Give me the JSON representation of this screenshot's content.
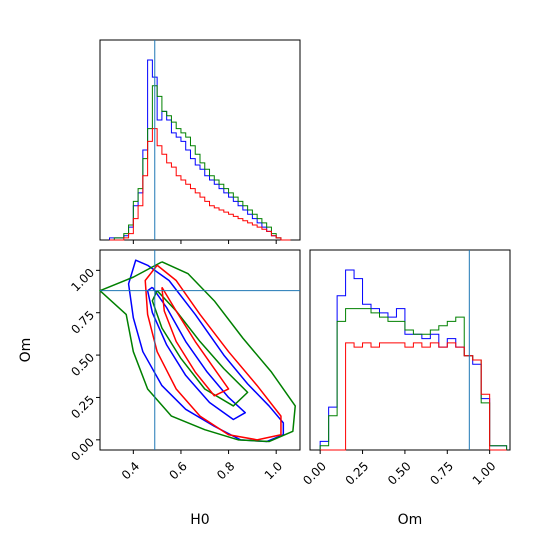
{
  "chart_data": [
    {
      "type": "histogram",
      "panel": "H0 marginal",
      "xlim": [
        0.26,
        1.1
      ],
      "truth": 0.49,
      "bins": [
        0.3,
        0.32,
        0.34,
        0.36,
        0.38,
        0.4,
        0.42,
        0.44,
        0.46,
        0.48,
        0.5,
        0.52,
        0.54,
        0.56,
        0.58,
        0.6,
        0.62,
        0.64,
        0.66,
        0.68,
        0.7,
        0.72,
        0.74,
        0.76,
        0.78,
        0.8,
        0.82,
        0.84,
        0.86,
        0.88,
        0.9,
        0.92,
        0.94,
        0.96,
        0.98,
        1.0,
        1.02,
        1.04,
        1.06
      ],
      "series": [
        {
          "color": "#0000ff",
          "values": [
            1,
            1,
            1,
            2,
            6,
            16,
            22,
            42,
            84,
            76,
            56,
            60,
            56,
            50,
            48,
            46,
            42,
            38,
            35,
            33,
            30,
            28,
            26,
            24,
            22,
            20,
            18,
            16,
            14,
            12,
            10,
            8,
            6,
            4,
            2,
            1,
            0,
            0
          ]
        },
        {
          "color": "#008000",
          "values": [
            0,
            1,
            1,
            3,
            7,
            18,
            24,
            38,
            52,
            72,
            67,
            60,
            58,
            55,
            52,
            50,
            48,
            44,
            40,
            36,
            33,
            30,
            28,
            26,
            24,
            22,
            20,
            18,
            16,
            14,
            12,
            10,
            8,
            6,
            3,
            1,
            0,
            0
          ]
        },
        {
          "color": "#ff0000",
          "values": [
            0,
            0,
            0,
            1,
            3,
            10,
            16,
            30,
            46,
            52,
            44,
            40,
            36,
            34,
            30,
            28,
            26,
            24,
            22,
            20,
            18,
            16,
            15,
            14,
            13,
            12,
            11,
            10,
            9,
            8,
            7,
            6,
            5,
            4,
            2,
            1,
            0,
            0
          ]
        }
      ]
    },
    {
      "type": "contour",
      "panel": "H0 vs Om",
      "xlabel": "H0",
      "ylabel": "Om",
      "xlim": [
        0.26,
        1.1
      ],
      "ylim": [
        -0.06,
        1.12
      ],
      "xticks": [
        "0.4",
        "0.6",
        "0.8",
        "1.0"
      ],
      "yticks": [
        "0.00",
        "0.25",
        "0.50",
        "0.75",
        "1.00"
      ],
      "truth": {
        "x": 0.49,
        "y": 0.88
      },
      "contours": [
        {
          "color": "#0000ff",
          "points": [
            [
              [
                0.46,
                1.03
              ],
              [
                0.55,
                0.94
              ],
              [
                0.66,
                0.74
              ],
              [
                0.78,
                0.5
              ],
              [
                0.88,
                0.33
              ],
              [
                0.97,
                0.2
              ],
              [
                1.03,
                0.1
              ],
              [
                1.03,
                0.03
              ],
              [
                0.96,
                -0.01
              ],
              [
                0.85,
                0.0
              ],
              [
                0.74,
                0.08
              ],
              [
                0.62,
                0.18
              ],
              [
                0.52,
                0.32
              ],
              [
                0.44,
                0.52
              ],
              [
                0.4,
                0.72
              ],
              [
                0.38,
                0.92
              ],
              [
                0.41,
                1.06
              ],
              [
                0.46,
                1.03
              ]
            ],
            [
              [
                0.48,
                0.9
              ],
              [
                0.54,
                0.78
              ],
              [
                0.62,
                0.58
              ],
              [
                0.71,
                0.4
              ],
              [
                0.8,
                0.25
              ],
              [
                0.87,
                0.16
              ],
              [
                0.82,
                0.12
              ],
              [
                0.72,
                0.22
              ],
              [
                0.62,
                0.38
              ],
              [
                0.54,
                0.56
              ],
              [
                0.48,
                0.75
              ],
              [
                0.46,
                0.88
              ],
              [
                0.48,
                0.9
              ]
            ]
          ]
        },
        {
          "color": "#008000",
          "points": [
            [
              [
                0.52,
                1.05
              ],
              [
                0.63,
                0.98
              ],
              [
                0.74,
                0.82
              ],
              [
                0.86,
                0.6
              ],
              [
                0.98,
                0.4
              ],
              [
                1.08,
                0.2
              ],
              [
                1.07,
                0.05
              ],
              [
                0.97,
                -0.01
              ],
              [
                0.84,
                0.0
              ],
              [
                0.7,
                0.06
              ],
              [
                0.56,
                0.14
              ],
              [
                0.46,
                0.3
              ],
              [
                0.4,
                0.52
              ],
              [
                0.37,
                0.74
              ],
              [
                0.26,
                0.88
              ],
              [
                0.4,
                0.96
              ],
              [
                0.52,
                1.05
              ]
            ],
            [
              [
                0.5,
                0.88
              ],
              [
                0.58,
                0.76
              ],
              [
                0.68,
                0.58
              ],
              [
                0.78,
                0.42
              ],
              [
                0.88,
                0.28
              ],
              [
                0.82,
                0.2
              ],
              [
                0.7,
                0.3
              ],
              [
                0.6,
                0.48
              ],
              [
                0.52,
                0.66
              ],
              [
                0.48,
                0.82
              ],
              [
                0.5,
                0.88
              ]
            ]
          ]
        },
        {
          "color": "#ff0000",
          "points": [
            [
              [
                0.5,
                1.03
              ],
              [
                0.58,
                0.94
              ],
              [
                0.68,
                0.74
              ],
              [
                0.8,
                0.52
              ],
              [
                0.92,
                0.32
              ],
              [
                1.02,
                0.14
              ],
              [
                1.02,
                0.03
              ],
              [
                0.92,
                0.0
              ],
              [
                0.8,
                0.03
              ],
              [
                0.68,
                0.14
              ],
              [
                0.58,
                0.3
              ],
              [
                0.5,
                0.52
              ],
              [
                0.46,
                0.74
              ],
              [
                0.45,
                0.94
              ],
              [
                0.5,
                1.03
              ]
            ],
            [
              [
                0.52,
                0.9
              ],
              [
                0.58,
                0.76
              ],
              [
                0.66,
                0.58
              ],
              [
                0.74,
                0.42
              ],
              [
                0.8,
                0.3
              ],
              [
                0.74,
                0.26
              ],
              [
                0.66,
                0.4
              ],
              [
                0.58,
                0.58
              ],
              [
                0.53,
                0.76
              ],
              [
                0.52,
                0.9
              ]
            ]
          ]
        }
      ]
    },
    {
      "type": "histogram",
      "panel": "Om marginal",
      "xlabel": "Om",
      "xlim": [
        -0.06,
        1.12
      ],
      "xticks": [
        "0.00",
        "0.25",
        "0.50",
        "0.75",
        "1.00"
      ],
      "truth": 0.88,
      "bins": [
        0.0,
        0.05,
        0.1,
        0.15,
        0.2,
        0.25,
        0.3,
        0.35,
        0.4,
        0.45,
        0.5,
        0.55,
        0.6,
        0.65,
        0.7,
        0.75,
        0.8,
        0.85,
        0.9,
        0.95,
        1.0,
        1.05,
        1.1
      ],
      "series": [
        {
          "color": "#0000ff",
          "values": [
            2,
            10,
            36,
            42,
            40,
            34,
            33,
            32,
            31,
            33,
            27,
            27,
            26,
            27,
            24,
            26,
            24,
            22,
            20,
            12,
            1,
            1
          ]
        },
        {
          "color": "#008000",
          "values": [
            1,
            8,
            30,
            33,
            33,
            33,
            32,
            31,
            30,
            30,
            28,
            27,
            27,
            28,
            29,
            30,
            31,
            22,
            21,
            11,
            1,
            1
          ]
        },
        {
          "color": "#ff0000",
          "values": [
            0,
            0,
            0,
            25,
            24,
            25,
            24,
            25,
            25,
            25,
            24,
            25,
            24,
            25,
            24,
            25,
            24,
            22,
            21,
            13,
            0,
            0
          ]
        }
      ]
    }
  ]
}
